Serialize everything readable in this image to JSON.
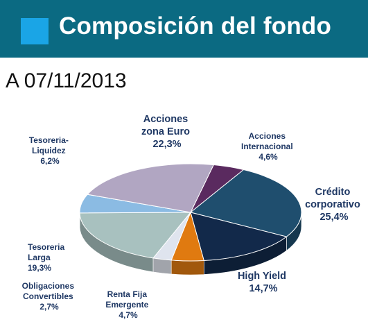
{
  "header": {
    "title": "Composición del fondo",
    "accent_color": "#1aa5e6",
    "bar_color": "#0b6a82"
  },
  "date_label": "A 07/11/2013",
  "chart_data": {
    "type": "pie",
    "style": "3d",
    "title": "",
    "slices": [
      {
        "label_lines": [
          "Acciones",
          "Internacional"
        ],
        "value_text": "4,6%",
        "value": 4.6,
        "color": "#5a2a5f"
      },
      {
        "label_lines": [
          "Crédito",
          "corporativo"
        ],
        "value_text": "25,4%",
        "value": 25.4,
        "color": "#1f4e6e"
      },
      {
        "label_lines": [
          "High Yield"
        ],
        "value_text": "14,7%",
        "value": 14.7,
        "color": "#12294a"
      },
      {
        "label_lines": [
          "Renta Fija",
          "Emergente"
        ],
        "value_text": "4,7%",
        "value": 4.7,
        "color": "#e07a10"
      },
      {
        "label_lines": [
          "Obligaciones",
          "Convertibles"
        ],
        "value_text": "2,7%",
        "value": 2.7,
        "color": "#dfe4ee"
      },
      {
        "label_lines": [
          "Tesoreria",
          "Larga"
        ],
        "value_text": "19,3%",
        "value": 19.3,
        "color": "#a8c1bf"
      },
      {
        "label_lines": [
          "Tesoreria-",
          "Liquidez"
        ],
        "value_text": "6,2%",
        "value": 6.2,
        "color": "#8bbbe3"
      },
      {
        "label_lines": [
          "Acciones",
          "zona Euro"
        ],
        "value_text": "22,3%",
        "value": 22.3,
        "color": "#b1a6c2"
      }
    ]
  }
}
